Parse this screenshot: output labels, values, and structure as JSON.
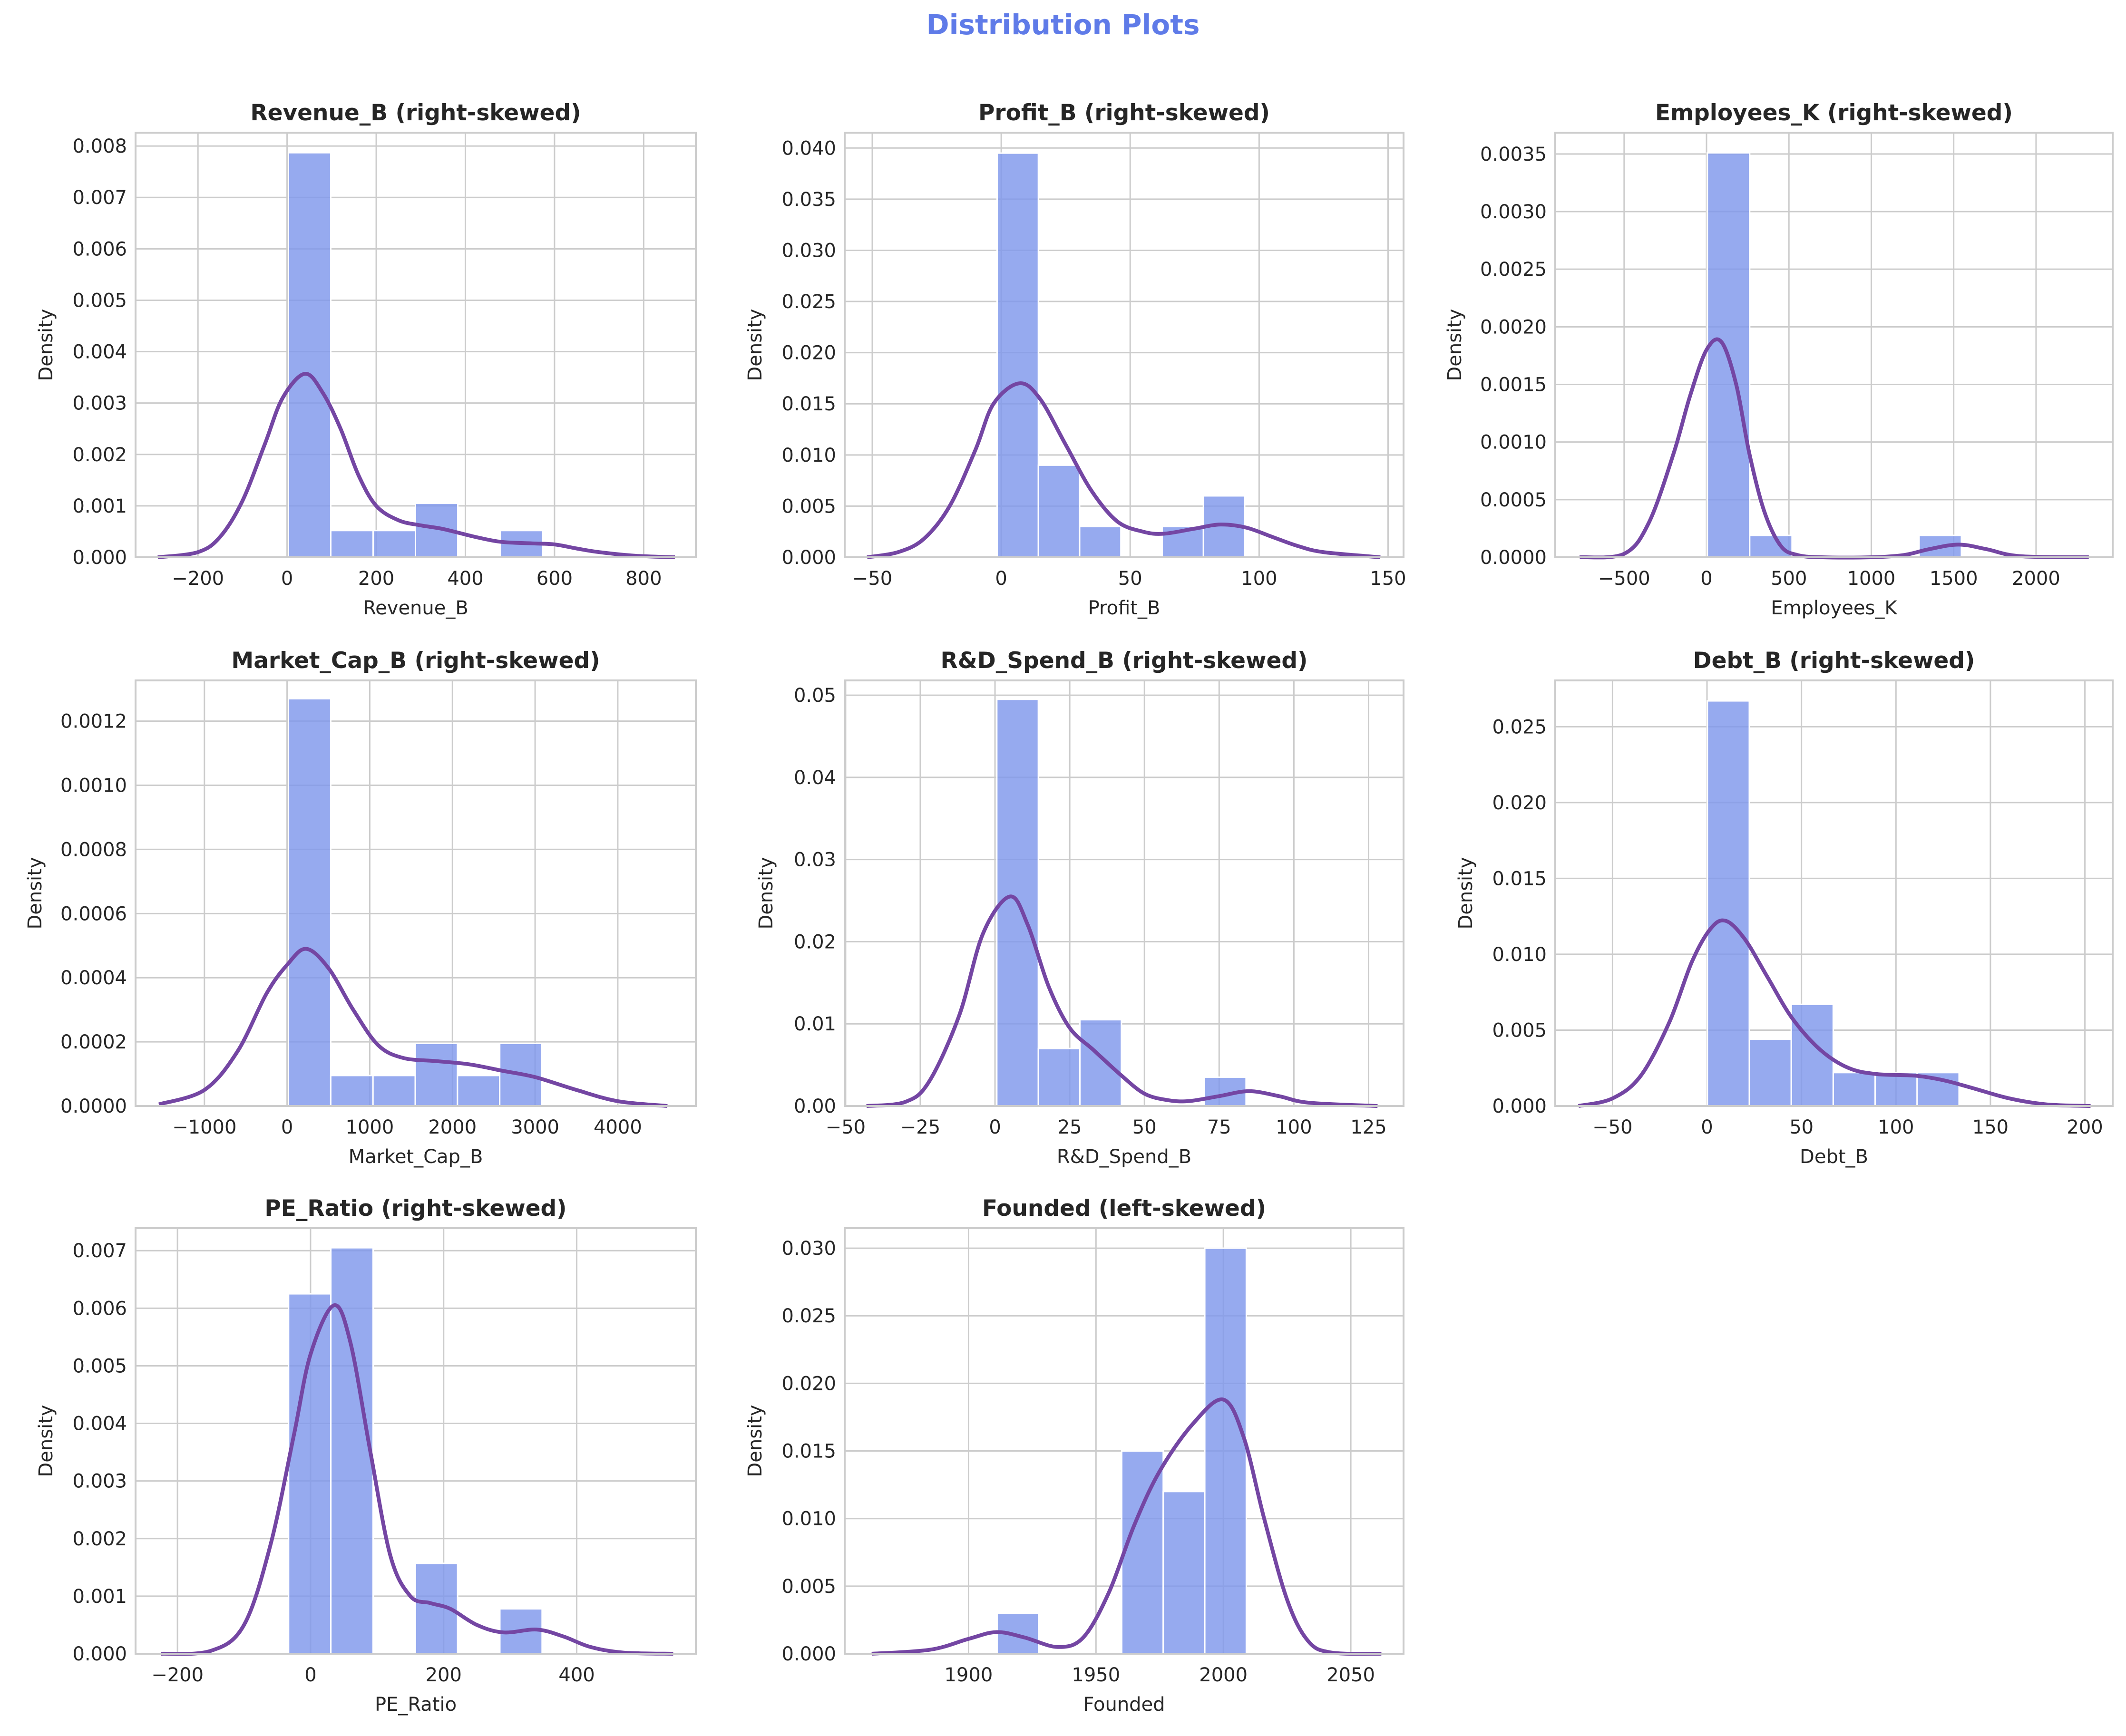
{
  "suptitle": "Distribution Plots",
  "colors": {
    "suptitle": "#5f7be8",
    "bar": "#7f97ec",
    "bar_edge": "#ffffff",
    "kde": "#7446a3",
    "grid": "#cccccc",
    "spine": "#cccccc"
  },
  "chart_data": [
    {
      "type": "bar",
      "title": "Revenue_B (right-skewed)",
      "xlabel": "Revenue_B",
      "ylabel": "Density",
      "xlim": [
        -340,
        917
      ],
      "ylim": [
        0,
        0.00826
      ],
      "grid": true,
      "xticks": [
        -200,
        0,
        200,
        400,
        600,
        800
      ],
      "xtick_labels": [
        "−200",
        "0",
        "200",
        "400",
        "600",
        "800"
      ],
      "yticks": [
        0,
        0.001,
        0.002,
        0.003,
        0.004,
        0.005,
        0.006,
        0.007,
        0.008
      ],
      "ytick_labels": [
        "0.000",
        "0.001",
        "0.002",
        "0.003",
        "0.004",
        "0.005",
        "0.006",
        "0.007",
        "0.008"
      ],
      "bin_edges": [
        3,
        98,
        193,
        288,
        383,
        478,
        573
      ],
      "bin_heights": [
        0.00787,
        0.00052,
        0.00052,
        0.00105,
        0,
        0.00052
      ],
      "kde": [
        [
          -290,
          0
        ],
        [
          -200,
          0.0001
        ],
        [
          -150,
          0.0004
        ],
        [
          -100,
          0.0011
        ],
        [
          -50,
          0.0022
        ],
        [
          -10,
          0.0031
        ],
        [
          40,
          0.00357
        ],
        [
          80,
          0.0032
        ],
        [
          120,
          0.0025
        ],
        [
          160,
          0.0016
        ],
        [
          200,
          0.001
        ],
        [
          250,
          0.00072
        ],
        [
          300,
          0.00062
        ],
        [
          350,
          0.00055
        ],
        [
          420,
          0.0004
        ],
        [
          480,
          0.0003
        ],
        [
          550,
          0.00027
        ],
        [
          600,
          0.00025
        ],
        [
          650,
          0.00017
        ],
        [
          700,
          0.0001
        ],
        [
          780,
          3e-05
        ],
        [
          870,
          0
        ]
      ]
    },
    {
      "type": "bar",
      "title": "Profit_B (right-skewed)",
      "xlabel": "Profit_B",
      "ylabel": "Density",
      "xlim": [
        -60.7,
        156
      ],
      "ylim": [
        0,
        0.0415
      ],
      "grid": true,
      "xticks": [
        -50,
        0,
        50,
        100,
        150
      ],
      "xtick_labels": [
        "−50",
        "0",
        "50",
        "100",
        "150"
      ],
      "yticks": [
        0,
        0.005,
        0.01,
        0.015,
        0.02,
        0.025,
        0.03,
        0.035,
        0.04
      ],
      "ytick_labels": [
        "0.000",
        "0.005",
        "0.010",
        "0.015",
        "0.020",
        "0.025",
        "0.030",
        "0.035",
        "0.040"
      ],
      "bin_edges": [
        -1.6,
        14.4,
        30.4,
        46.4,
        62.4,
        78.4,
        94.4
      ],
      "bin_heights": [
        0.0395,
        0.009,
        0.003,
        0,
        0.003,
        0.006
      ],
      "kde": [
        [
          -52,
          0
        ],
        [
          -40,
          0.0005
        ],
        [
          -30,
          0.0018
        ],
        [
          -20,
          0.005
        ],
        [
          -10,
          0.0105
        ],
        [
          -3,
          0.015
        ],
        [
          7,
          0.017
        ],
        [
          15,
          0.0155
        ],
        [
          25,
          0.011
        ],
        [
          35,
          0.0065
        ],
        [
          45,
          0.0035
        ],
        [
          55,
          0.0025
        ],
        [
          63,
          0.0023
        ],
        [
          75,
          0.0028
        ],
        [
          85,
          0.0032
        ],
        [
          95,
          0.0029
        ],
        [
          105,
          0.002
        ],
        [
          115,
          0.0011
        ],
        [
          125,
          0.0005
        ],
        [
          147,
          0
        ]
      ]
    },
    {
      "type": "bar",
      "title": "Employees_K (right-skewed)",
      "xlabel": "Employees_K",
      "ylabel": "Density",
      "xlim": [
        -918,
        2465
      ],
      "ylim": [
        0,
        0.003685
      ],
      "grid": true,
      "xticks": [
        -500,
        0,
        500,
        1000,
        1500,
        2000
      ],
      "xtick_labels": [
        "−500",
        "0",
        "500",
        "1000",
        "1500",
        "2000"
      ],
      "yticks": [
        0,
        0.0005,
        0.001,
        0.0015,
        0.002,
        0.0025,
        0.003,
        0.0035
      ],
      "ytick_labels": [
        "0.0000",
        "0.0005",
        "0.0010",
        "0.0015",
        "0.0020",
        "0.0025",
        "0.0030",
        "0.0035"
      ],
      "bin_edges": [
        5,
        262,
        519,
        776,
        1033,
        1290,
        1547
      ],
      "bin_heights": [
        0.00351,
        0.00019,
        0,
        0,
        0,
        0.00019
      ],
      "kde": [
        [
          -770,
          0
        ],
        [
          -500,
          3e-05
        ],
        [
          -350,
          0.0003
        ],
        [
          -200,
          0.0009
        ],
        [
          -100,
          0.0014
        ],
        [
          0,
          0.0018
        ],
        [
          90,
          0.00187
        ],
        [
          180,
          0.0015
        ],
        [
          260,
          0.0009
        ],
        [
          350,
          0.0004
        ],
        [
          450,
          0.0001
        ],
        [
          550,
          2e-05
        ],
        [
          700,
          0
        ],
        [
          1000,
          0
        ],
        [
          1200,
          2e-05
        ],
        [
          1350,
          7e-05
        ],
        [
          1530,
          0.00011
        ],
        [
          1700,
          7e-05
        ],
        [
          1900,
          1e-05
        ],
        [
          2320,
          0
        ]
      ]
    },
    {
      "type": "bar",
      "title": "Market_Cap_B (right-skewed)",
      "xlabel": "Market_Cap_B",
      "ylabel": "Density",
      "xlim": [
        -1833,
        4944
      ],
      "ylim": [
        0,
        0.001327
      ],
      "grid": true,
      "xticks": [
        -1000,
        0,
        1000,
        2000,
        3000,
        4000
      ],
      "xtick_labels": [
        "−1000",
        "0",
        "1000",
        "2000",
        "3000",
        "4000"
      ],
      "yticks": [
        0,
        0.0002,
        0.0004,
        0.0006,
        0.0008,
        0.001,
        0.0012
      ],
      "ytick_labels": [
        "0.0000",
        "0.0002",
        "0.0004",
        "0.0006",
        "0.0008",
        "0.0010",
        "0.0012"
      ],
      "bin_edges": [
        17,
        528,
        1039,
        1550,
        2061,
        2572,
        3083
      ],
      "bin_heights": [
        0.00127,
        9.5e-05,
        9.5e-05,
        0.000195,
        9.5e-05,
        0.000195
      ],
      "kde": [
        [
          -1550,
          5e-06
        ],
        [
          -1000,
          5e-05
        ],
        [
          -600,
          0.00017
        ],
        [
          -250,
          0.00035
        ],
        [
          0,
          0.00044
        ],
        [
          230,
          0.00049
        ],
        [
          500,
          0.00043
        ],
        [
          800,
          0.0003
        ],
        [
          1100,
          0.00019
        ],
        [
          1400,
          0.00015
        ],
        [
          1800,
          0.00014
        ],
        [
          2200,
          0.00013
        ],
        [
          2600,
          0.00011
        ],
        [
          3000,
          9e-05
        ],
        [
          3500,
          5e-05
        ],
        [
          4000,
          1.5e-05
        ],
        [
          4600,
          0
        ]
      ]
    },
    {
      "type": "bar",
      "title": "R&D_Spend_B (right-skewed)",
      "xlabel": "R&D_Spend_B",
      "ylabel": "Density",
      "xlim": [
        -50.3,
        136.7
      ],
      "ylim": [
        0,
        0.0518
      ],
      "grid": true,
      "xticks": [
        -50,
        -25,
        0,
        25,
        50,
        75,
        100,
        125
      ],
      "xtick_labels": [
        "−50",
        "−25",
        "0",
        "25",
        "50",
        "75",
        "100",
        "125"
      ],
      "yticks": [
        0,
        0.01,
        0.02,
        0.03,
        0.04,
        0.05
      ],
      "ytick_labels": [
        "0.00",
        "0.01",
        "0.02",
        "0.03",
        "0.04",
        "0.05"
      ],
      "bin_edges": [
        0.6,
        14.5,
        28.4,
        42.3,
        56.2,
        70.1,
        84.0
      ],
      "bin_heights": [
        0.0495,
        0.007,
        0.0105,
        0,
        0,
        0.0035
      ],
      "kde": [
        [
          -43,
          0
        ],
        [
          -30,
          0.0005
        ],
        [
          -22,
          0.003
        ],
        [
          -12,
          0.011
        ],
        [
          -4,
          0.021
        ],
        [
          5,
          0.0255
        ],
        [
          11,
          0.022
        ],
        [
          18,
          0.0145
        ],
        [
          25,
          0.0095
        ],
        [
          33,
          0.0068
        ],
        [
          42,
          0.0038
        ],
        [
          50,
          0.0015
        ],
        [
          58,
          0.0007
        ],
        [
          65,
          0.0006
        ],
        [
          75,
          0.0012
        ],
        [
          85,
          0.0018
        ],
        [
          95,
          0.0012
        ],
        [
          105,
          0.0004
        ],
        [
          128,
          0
        ]
      ]
    },
    {
      "type": "bar",
      "title": "Debt_B (right-skewed)",
      "xlabel": "Debt_B",
      "ylabel": "Density",
      "xlim": [
        -80.3,
        214.7
      ],
      "ylim": [
        0,
        0.02805
      ],
      "grid": true,
      "xticks": [
        -50,
        0,
        50,
        100,
        150,
        200
      ],
      "xtick_labels": [
        "−50",
        "0",
        "50",
        "100",
        "150",
        "200"
      ],
      "yticks": [
        0,
        0.005,
        0.01,
        0.015,
        0.02,
        0.025
      ],
      "ytick_labels": [
        "0.000",
        "0.005",
        "0.010",
        "0.015",
        "0.020",
        "0.025"
      ],
      "bin_edges": [
        0.2,
        22.4,
        44.6,
        66.8,
        89,
        111.2,
        133.4
      ],
      "bin_heights": [
        0.0267,
        0.0044,
        0.0067,
        0.0022,
        0.0022,
        0.0022
      ],
      "kde": [
        [
          -68,
          0
        ],
        [
          -50,
          0.0005
        ],
        [
          -35,
          0.002
        ],
        [
          -20,
          0.0055
        ],
        [
          -8,
          0.0095
        ],
        [
          2,
          0.0117
        ],
        [
          10,
          0.0122
        ],
        [
          20,
          0.011
        ],
        [
          32,
          0.0085
        ],
        [
          45,
          0.0058
        ],
        [
          60,
          0.0037
        ],
        [
          75,
          0.0025
        ],
        [
          90,
          0.0021
        ],
        [
          110,
          0.002
        ],
        [
          125,
          0.0017
        ],
        [
          140,
          0.0012
        ],
        [
          160,
          0.0005
        ],
        [
          180,
          0.0001
        ],
        [
          203,
          0
        ]
      ]
    },
    {
      "type": "bar",
      "title": "PE_Ratio (right-skewed)",
      "xlabel": "PE_Ratio",
      "ylabel": "Density",
      "xlim": [
        -263,
        579
      ],
      "ylim": [
        0,
        0.00739
      ],
      "grid": true,
      "xticks": [
        -200,
        0,
        200,
        400
      ],
      "xtick_labels": [
        "−200",
        "0",
        "200",
        "400"
      ],
      "yticks": [
        0,
        0.001,
        0.002,
        0.003,
        0.004,
        0.005,
        0.006,
        0.007
      ],
      "ytick_labels": [
        "0.000",
        "0.001",
        "0.002",
        "0.003",
        "0.004",
        "0.005",
        "0.006",
        "0.007"
      ],
      "bin_edges": [
        -33,
        30.5,
        94,
        157.5,
        221,
        284.5,
        348
      ],
      "bin_heights": [
        0.00625,
        0.00705,
        0,
        0.00157,
        0,
        0.00078
      ],
      "kde": [
        [
          -225,
          0
        ],
        [
          -150,
          5e-05
        ],
        [
          -100,
          0.0005
        ],
        [
          -60,
          0.0019
        ],
        [
          -25,
          0.0038
        ],
        [
          0,
          0.0052
        ],
        [
          35,
          0.00605
        ],
        [
          60,
          0.0054
        ],
        [
          90,
          0.0035
        ],
        [
          120,
          0.0017
        ],
        [
          150,
          0.001
        ],
        [
          180,
          0.00088
        ],
        [
          210,
          0.00078
        ],
        [
          250,
          0.0005
        ],
        [
          290,
          0.00037
        ],
        [
          340,
          0.00042
        ],
        [
          380,
          0.0003
        ],
        [
          420,
          0.00012
        ],
        [
          470,
          2e-05
        ],
        [
          545,
          0
        ]
      ]
    },
    {
      "type": "bar",
      "title": "Founded (left-skewed)",
      "xlabel": "Founded",
      "ylabel": "Density",
      "xlim": [
        1851.4,
        2070.7
      ],
      "ylim": [
        0,
        0.03148
      ],
      "grid": true,
      "xticks": [
        1900,
        1950,
        2000,
        2050
      ],
      "xtick_labels": [
        "1900",
        "1950",
        "2000",
        "2050"
      ],
      "yticks": [
        0,
        0.005,
        0.01,
        0.015,
        0.02,
        0.025,
        0.03
      ],
      "ytick_labels": [
        "0.000",
        "0.005",
        "0.010",
        "0.015",
        "0.020",
        "0.025",
        "0.030"
      ],
      "bin_edges": [
        1911.2,
        1927.5,
        1943.8,
        1960.1,
        1976.4,
        1992.7,
        2009.0
      ],
      "bin_heights": [
        0.003,
        0,
        0,
        0.015,
        0.012,
        0.03
      ],
      "kde": [
        [
          1862,
          0
        ],
        [
          1885,
          0.0003
        ],
        [
          1900,
          0.0011
        ],
        [
          1911,
          0.0016
        ],
        [
          1922,
          0.0012
        ],
        [
          1935,
          0.0005
        ],
        [
          1945,
          0.0012
        ],
        [
          1955,
          0.0045
        ],
        [
          1965,
          0.0095
        ],
        [
          1975,
          0.0135
        ],
        [
          1988,
          0.017
        ],
        [
          2000,
          0.0188
        ],
        [
          2008,
          0.016
        ],
        [
          2016,
          0.01
        ],
        [
          2025,
          0.004
        ],
        [
          2033,
          0.001
        ],
        [
          2042,
          0.0001
        ],
        [
          2062,
          0
        ]
      ]
    }
  ]
}
